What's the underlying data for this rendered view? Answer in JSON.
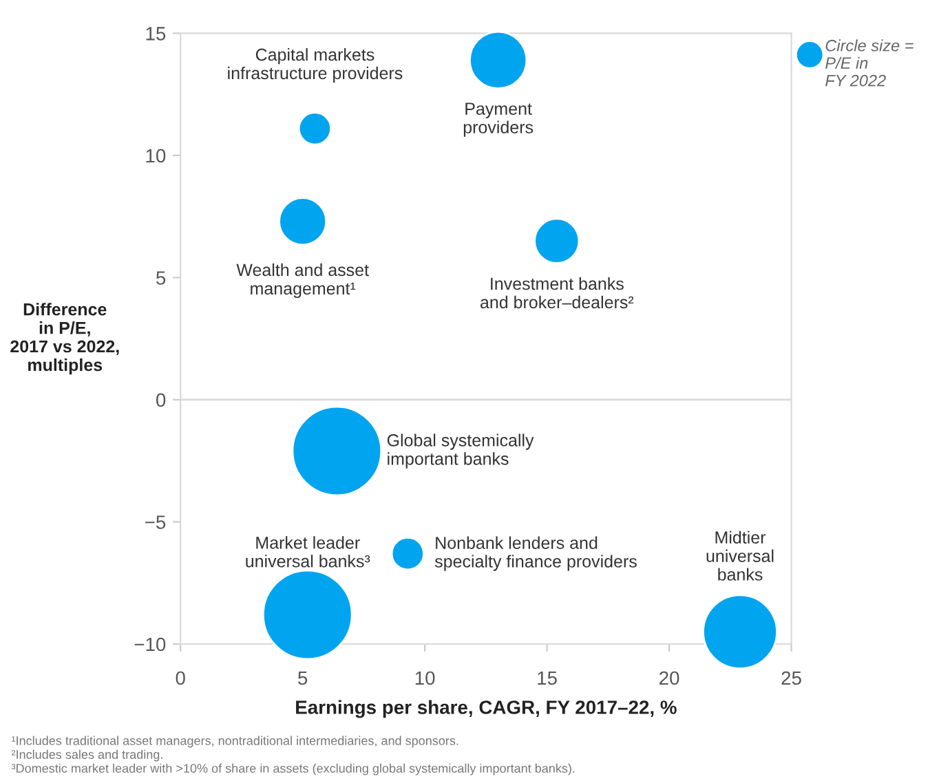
{
  "chart_data": {
    "type": "bubble",
    "xlabel": "Earnings per share, CAGR, FY 2017–22, %",
    "ylabel": "Difference\nin P/E,\n2017 vs 2022,\nmultiples",
    "legend_title": "Circle size =\nP/E in\nFY 2022",
    "x": [
      5.5,
      13.0,
      5.0,
      15.4,
      6.4,
      5.2,
      9.3,
      22.9
    ],
    "values": [
      11.1,
      13.9,
      7.3,
      6.5,
      -2.1,
      -8.8,
      -6.3,
      -9.5
    ],
    "sizes": [
      0.13,
      0.41,
      0.28,
      0.25,
      1,
      1,
      0.13,
      0.69
    ],
    "color": "#00a4ef",
    "xlim": [
      0,
      25
    ],
    "xticks": [
      0,
      5,
      10,
      15,
      20,
      25
    ],
    "ylim": [
      -10,
      15
    ],
    "yticks": [
      -10,
      -5,
      0,
      5,
      10,
      15
    ],
    "ref_lines": [
      {
        "axis": "y",
        "value": 0,
        "color": "#d9d9d9"
      }
    ],
    "annotations": [
      {
        "text": "Capital markets\ninfrastructure providers",
        "x": 5.5,
        "y": 11.1
      },
      {
        "text": "Payment\nproviders",
        "x": 13.0,
        "y": 13.9
      },
      {
        "text": "Wealth and asset\nmanagement¹",
        "x": 5.0,
        "y": 7.3
      },
      {
        "text": "Investment banks\nand broker–dealers²",
        "x": 15.4,
        "y": 6.5
      },
      {
        "text": "Global systemically\nimportant banks",
        "x": 6.4,
        "y": -2.1
      },
      {
        "text": "Market leader\nuniversal banks³",
        "x": 5.2,
        "y": -8.8
      },
      {
        "text": "Nonbank lenders and\nspecialty finance providers",
        "x": 9.3,
        "y": -6.3
      },
      {
        "text": "Midtier\nuniversal\nbanks",
        "x": 22.9,
        "y": -9.5
      },
      "¹Includes traditional asset managers, nontraditional intermediaries, and sponsors.\n²Includes sales and trading.\n³Domestic market leader with >10% of share in assets (excluding global systemically important banks)."
    ]
  }
}
